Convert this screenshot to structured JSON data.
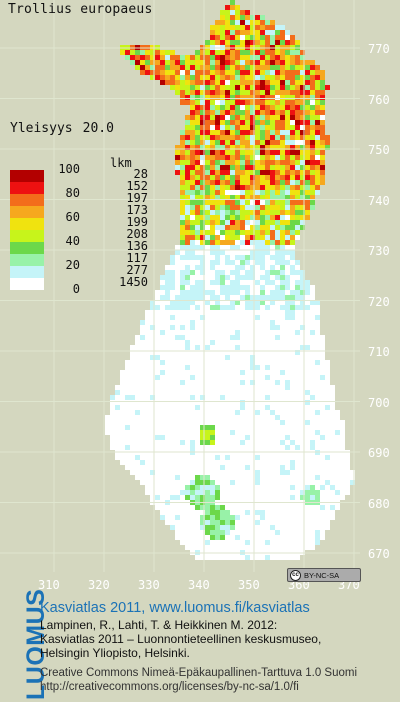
{
  "map": {
    "species": "Trollius europaeus",
    "frequency_label": "Yleisyys",
    "frequency_value": "20.0",
    "grid_y_ticks": [
      "770",
      "760",
      "750",
      "740",
      "730",
      "720",
      "710",
      "700",
      "690",
      "680",
      "670"
    ],
    "grid_x_ticks": [
      "310",
      "320",
      "330",
      "340",
      "350",
      "360",
      "370"
    ],
    "background_color": "#d4d7bf",
    "finland_fill": "#ffffff",
    "grid_line_color": "#dfe6cf"
  },
  "legend": {
    "count_header": "lkm",
    "percent_labels": [
      "100",
      "80",
      "60",
      "40",
      "20",
      "0"
    ],
    "classes": [
      {
        "color": "#b30000",
        "count": "28"
      },
      {
        "color": "#ee1111",
        "count": "152"
      },
      {
        "color": "#f36d1b",
        "count": "197"
      },
      {
        "color": "#f6a81e",
        "count": "173"
      },
      {
        "color": "#f0e30f",
        "count": "199"
      },
      {
        "color": "#c7f41b",
        "count": "208"
      },
      {
        "color": "#6cd84a",
        "count": "136"
      },
      {
        "color": "#98f2a8",
        "count": "117"
      },
      {
        "color": "#c5f4f8",
        "count": "277"
      },
      {
        "color": "#ffffff",
        "count": "1450"
      }
    ]
  },
  "license_badge": "BY-NC-SA",
  "footer": {
    "brand": "LUOMUS",
    "title": "Kasviatlas 2011, www.luomus.fi/kasviatlas",
    "citation_lines": [
      "Lampinen, R., Lahti, T. & Heikkinen M. 2012:",
      "Kasviatlas 2011 – Luonnontieteellinen keskusmuseo,",
      "Helsingin Yliopisto, Helsinki."
    ],
    "license_lines": [
      "Creative Commons Nimeä-Epäkaupallinen-Tarttuva 1.0 Suomi",
      "http://creativecommons.org/licenses/by-nc-sa/1.0/fi"
    ],
    "brand_color": "#1b72b6"
  }
}
